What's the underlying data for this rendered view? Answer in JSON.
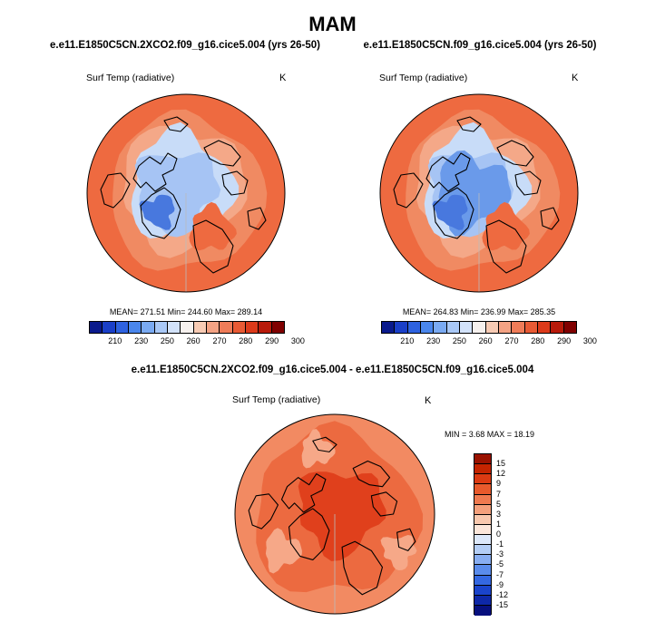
{
  "season": "MAM",
  "panels": [
    {
      "title": "e.e11.E1850C5CN.2XCO2.f09_g16.cice5.004 (yrs 26-50)",
      "variable": "Surf Temp (radiative)",
      "unit": "K",
      "stats": "MEAN= 271.51  Min= 244.60  Max= 289.14",
      "stat_values": {
        "mean": 271.51,
        "min": 244.6,
        "max": 289.14
      }
    },
    {
      "title": "e.e11.E1850C5CN.f09_g16.cice5.004 (yrs 26-50)",
      "variable": "Surf Temp (radiative)",
      "unit": "K",
      "stats": "MEAN= 264.83  Min= 236.99  Max= 285.35",
      "stat_values": {
        "mean": 264.83,
        "min": 236.99,
        "max": 285.35
      }
    },
    {
      "title": "e.e11.E1850C5CN.2XCO2.f09_g16.cice5.004 - e.e11.E1850C5CN.f09_g16.cice5.004",
      "variable": "Surf Temp (radiative)",
      "unit": "K",
      "stats": "MIN =   3.68 MAX =  18.19",
      "stat_values": {
        "min": 3.68,
        "max": 18.19
      }
    }
  ],
  "abs_colorbar": {
    "ticks": [
      "210",
      "230",
      "250",
      "260",
      "270",
      "280",
      "290",
      "300"
    ],
    "colors": [
      "#0a1a8c",
      "#1a3fc8",
      "#2e62e0",
      "#4a86ec",
      "#7aaaf2",
      "#a9c8f6",
      "#d2e2fa",
      "#f6f1ee",
      "#f7cbb4",
      "#f4a384",
      "#ef7c58",
      "#e85a34",
      "#dc3a1a",
      "#b81a0a",
      "#800000"
    ]
  },
  "diff_colorbar": {
    "ticks": [
      "15",
      "12",
      "9",
      "7",
      "5",
      "3",
      "1",
      "0",
      "-1",
      "-3",
      "-5",
      "-7",
      "-9",
      "-12",
      "-15"
    ],
    "colors": [
      "#9a1200",
      "#c42400",
      "#dc3a12",
      "#e85a2c",
      "#ef7a50",
      "#f4a07c",
      "#f8c8ae",
      "#fbe6da",
      "#dce8fa",
      "#b4cef6",
      "#88aef2",
      "#5a8cec",
      "#3468e2",
      "#1a44cc",
      "#0e28a8",
      "#07107e"
    ]
  },
  "map_colors": {
    "warm1": "#ee6a40",
    "warm2": "#f08a62",
    "warm3": "#f4a888",
    "cool1": "#c8dcf8",
    "cool2": "#a6c4f4",
    "cool3": "#6a9aea",
    "cool4": "#4878de",
    "diff1": "#e0401c",
    "diff2": "#ec6a40",
    "diff3": "#f28a62",
    "diff4": "#f6a888"
  }
}
